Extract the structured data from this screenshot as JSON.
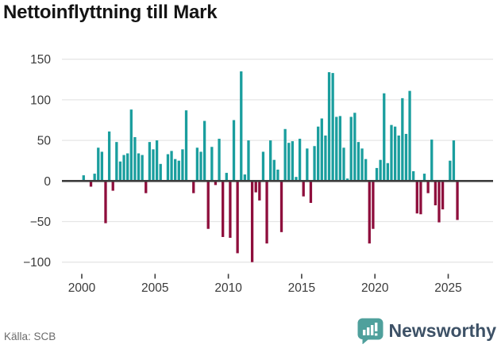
{
  "page_title": "Nettoinflyttning till Mark",
  "chart_data": {
    "type": "bar",
    "title": "Nettoinflyttning till Mark",
    "frequency": "quarterly",
    "grid": true,
    "x_tick_labels": [
      "2000",
      "2005",
      "2010",
      "2015",
      "2020",
      "2025"
    ],
    "x_tick_years": [
      2000,
      2005,
      2010,
      2015,
      2020,
      2025
    ],
    "y_tick_labels": [
      "150",
      "100",
      "50",
      "0",
      "−50",
      "−100"
    ],
    "y_ticks": [
      150,
      100,
      50,
      0,
      -50,
      -100
    ],
    "ylim": [
      -115,
      155
    ],
    "positive_color": "#1a9e9e",
    "negative_color": "#8e0e3c",
    "labels": [
      "2000Q1",
      "2000Q2",
      "2000Q3",
      "2000Q4",
      "2001Q1",
      "2001Q2",
      "2001Q3",
      "2001Q4",
      "2002Q1",
      "2002Q2",
      "2002Q3",
      "2002Q4",
      "2003Q1",
      "2003Q2",
      "2003Q3",
      "2003Q4",
      "2004Q1",
      "2004Q2",
      "2004Q3",
      "2004Q4",
      "2005Q1",
      "2005Q2",
      "2005Q3",
      "2005Q4",
      "2006Q1",
      "2006Q2",
      "2006Q3",
      "2006Q4",
      "2007Q1",
      "2007Q2",
      "2007Q3",
      "2007Q4",
      "2008Q1",
      "2008Q2",
      "2008Q3",
      "2008Q4",
      "2009Q1",
      "2009Q2",
      "2009Q3",
      "2009Q4",
      "2010Q1",
      "2010Q2",
      "2010Q3",
      "2010Q4",
      "2011Q1",
      "2011Q2",
      "2011Q3",
      "2011Q4",
      "2012Q1",
      "2012Q2",
      "2012Q3",
      "2012Q4",
      "2013Q1",
      "2013Q2",
      "2013Q3",
      "2013Q4",
      "2014Q1",
      "2014Q2",
      "2014Q3",
      "2014Q4",
      "2015Q1",
      "2015Q2",
      "2015Q3",
      "2015Q4",
      "2016Q1",
      "2016Q2",
      "2016Q3",
      "2016Q4",
      "2017Q1",
      "2017Q2",
      "2017Q3",
      "2017Q4",
      "2018Q1",
      "2018Q2",
      "2018Q3",
      "2018Q4",
      "2019Q1",
      "2019Q2",
      "2019Q3",
      "2019Q4",
      "2020Q1",
      "2020Q2",
      "2020Q3",
      "2020Q4",
      "2021Q1",
      "2021Q2",
      "2021Q3",
      "2021Q4",
      "2022Q1",
      "2022Q2",
      "2022Q3",
      "2022Q4",
      "2023Q1",
      "2023Q2",
      "2023Q3",
      "2023Q4",
      "2024Q1",
      "2024Q2",
      "2024Q3",
      "2024Q4",
      "2025Q1",
      "2025Q2",
      "2025Q3"
    ],
    "values": [
      7,
      0,
      -7,
      9,
      41,
      36,
      -52,
      61,
      -12,
      48,
      24,
      32,
      34,
      88,
      54,
      34,
      32,
      -15,
      48,
      39,
      50,
      21,
      0,
      33,
      37,
      27,
      25,
      39,
      87,
      0,
      -15,
      41,
      36,
      74,
      -59,
      42,
      -5,
      52,
      -69,
      10,
      -70,
      75,
      -89,
      135,
      8,
      50,
      -100,
      -14,
      -24,
      36,
      -77,
      50,
      26,
      14,
      -63,
      64,
      47,
      49,
      5,
      52,
      -19,
      40,
      -27,
      43,
      67,
      77,
      56,
      134,
      133,
      79,
      80,
      41,
      3,
      79,
      84,
      48,
      40,
      27,
      -77,
      -59,
      16,
      26,
      108,
      22,
      69,
      67,
      56,
      102,
      58,
      111,
      12,
      -40,
      -41,
      9,
      -15,
      51,
      -30,
      -51,
      -35,
      0,
      25,
      50,
      -48
    ]
  },
  "footer": {
    "source": "Källa: SCB",
    "brand": "Newsworthy"
  },
  "colors": {
    "title": "#141414",
    "axis": "#3d3d3d",
    "grid": "#e6e6e6",
    "tick_label": "#3a3a3a",
    "source_text": "#6b6b6b",
    "brand_text": "#3d5166",
    "brand_bubble": "#4fa09c"
  }
}
